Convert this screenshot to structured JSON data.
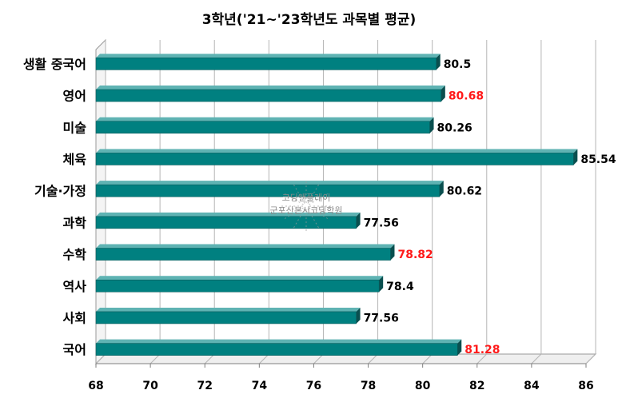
{
  "chart_data": {
    "type": "bar",
    "orientation": "horizontal",
    "title": "3학년('21~'23학년도 과목별 평균)",
    "categories": [
      "생활 중국어",
      "영어",
      "미술",
      "체육",
      "기술·가정",
      "과학",
      "수학",
      "역사",
      "사회",
      "국어"
    ],
    "values": [
      80.5,
      80.68,
      80.26,
      85.54,
      80.62,
      77.56,
      78.82,
      78.4,
      77.56,
      81.28
    ],
    "value_label_colors": [
      "#000000",
      "#ff1a1a",
      "#000000",
      "#000000",
      "#000000",
      "#000000",
      "#ff1a1a",
      "#000000",
      "#000000",
      "#ff1a1a"
    ],
    "xlim": [
      68,
      86
    ],
    "xticks": [
      68,
      70,
      72,
      74,
      76,
      78,
      80,
      82,
      84,
      86
    ],
    "grid": true,
    "bar_color": "#008080",
    "watermark": [
      "코딩앤플레이",
      "군포산본시코딩학원"
    ]
  }
}
